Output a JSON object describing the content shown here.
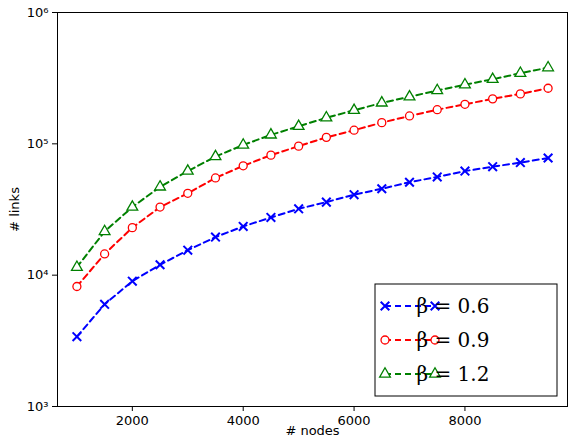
{
  "chart_data": {
    "type": "line",
    "x_label": "# nodes",
    "y_label": "# links",
    "x": [
      1000,
      1500,
      2000,
      2500,
      3000,
      3500,
      4000,
      4500,
      5000,
      5500,
      6000,
      6500,
      7000,
      7500,
      8000,
      8500,
      9000,
      9500
    ],
    "series": [
      {
        "name": "β = 0.6",
        "color": "#0000ff",
        "marker": "x",
        "line_style": "dashed",
        "values": [
          3400,
          6000,
          9000,
          12000,
          15500,
          19500,
          23500,
          27500,
          32000,
          36000,
          41000,
          45500,
          51000,
          56000,
          62000,
          67000,
          72000,
          78000
        ]
      },
      {
        "name": "β = 0.9",
        "color": "#ff0000",
        "marker": "circle",
        "line_style": "dashed",
        "values": [
          8200,
          14500,
          23000,
          33000,
          42000,
          55000,
          68000,
          82000,
          96000,
          112000,
          127000,
          145000,
          163000,
          182000,
          200000,
          220000,
          240000,
          265000
        ]
      },
      {
        "name": "β = 1.2",
        "color": "#008000",
        "marker": "triangle",
        "line_style": "dashed",
        "values": [
          11500,
          21500,
          33000,
          47000,
          62000,
          80000,
          98000,
          117000,
          136000,
          158000,
          180000,
          205000,
          228000,
          255000,
          282000,
          310000,
          345000,
          380000
        ]
      }
    ],
    "xlim": [
      650,
      9850
    ],
    "xticks": [
      2000,
      4000,
      6000,
      8000
    ],
    "ylim": [
      1000,
      1000000
    ],
    "yticks": [
      {
        "value": 1000,
        "label": "10³"
      },
      {
        "value": 10000,
        "label": "10⁴"
      },
      {
        "value": 100000,
        "label": "10⁵"
      },
      {
        "value": 1000000,
        "label": "10⁶"
      }
    ],
    "log": "y",
    "grid": false,
    "legend": "lower right"
  }
}
